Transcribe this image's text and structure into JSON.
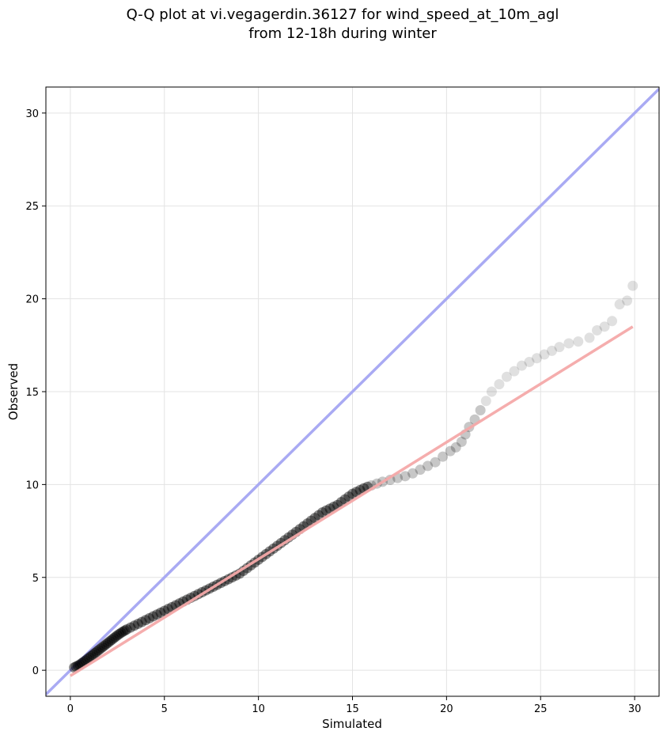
{
  "chart_data": {
    "type": "scatter",
    "title_lines": [
      "Q-Q plot at vi.vegagerdin.36127 for wind_speed_at_10m_agl",
      "from 12-18h during winter"
    ],
    "xlabel": "Simulated",
    "ylabel": "Observed",
    "xlim": [
      -1.3,
      31.3
    ],
    "ylim": [
      -1.4,
      31.4
    ],
    "xticks": [
      0,
      5,
      10,
      15,
      20,
      25,
      30
    ],
    "yticks": [
      0,
      5,
      10,
      15,
      20,
      25,
      30
    ],
    "grid": true,
    "identity_line": {
      "color": "#a9aaf3",
      "from": [
        -1.3,
        -1.3
      ],
      "to": [
        31.3,
        31.3
      ]
    },
    "fit_line": {
      "color": "#f4a9a9",
      "from": [
        0.0,
        -0.3
      ],
      "to": [
        29.9,
        18.5
      ]
    },
    "point_color": "#000000",
    "points": [
      [
        0.2,
        0.15
      ],
      [
        0.3,
        0.2
      ],
      [
        0.4,
        0.25
      ],
      [
        0.5,
        0.3
      ],
      [
        0.6,
        0.38
      ],
      [
        0.7,
        0.45
      ],
      [
        0.8,
        0.52
      ],
      [
        0.9,
        0.6
      ],
      [
        1.0,
        0.68
      ],
      [
        1.1,
        0.76
      ],
      [
        1.2,
        0.84
      ],
      [
        1.3,
        0.92
      ],
      [
        1.4,
        1.0
      ],
      [
        1.5,
        1.08
      ],
      [
        1.6,
        1.16
      ],
      [
        1.7,
        1.24
      ],
      [
        1.8,
        1.32
      ],
      [
        1.9,
        1.4
      ],
      [
        2.0,
        1.48
      ],
      [
        2.1,
        1.56
      ],
      [
        2.2,
        1.64
      ],
      [
        2.3,
        1.72
      ],
      [
        2.4,
        1.8
      ],
      [
        2.5,
        1.88
      ],
      [
        2.6,
        1.95
      ],
      [
        2.7,
        2.02
      ],
      [
        2.8,
        2.08
      ],
      [
        2.9,
        2.14
      ],
      [
        3.0,
        2.2
      ],
      [
        3.2,
        2.3
      ],
      [
        3.4,
        2.4
      ],
      [
        3.6,
        2.5
      ],
      [
        3.8,
        2.6
      ],
      [
        4.0,
        2.7
      ],
      [
        4.2,
        2.8
      ],
      [
        4.4,
        2.9
      ],
      [
        4.6,
        3.0
      ],
      [
        4.8,
        3.1
      ],
      [
        5.0,
        3.2
      ],
      [
        5.2,
        3.3
      ],
      [
        5.4,
        3.4
      ],
      [
        5.6,
        3.5
      ],
      [
        5.8,
        3.6
      ],
      [
        6.0,
        3.7
      ],
      [
        6.2,
        3.8
      ],
      [
        6.4,
        3.9
      ],
      [
        6.6,
        4.0
      ],
      [
        6.8,
        4.1
      ],
      [
        7.0,
        4.2
      ],
      [
        7.2,
        4.3
      ],
      [
        7.4,
        4.4
      ],
      [
        7.6,
        4.5
      ],
      [
        7.8,
        4.6
      ],
      [
        8.0,
        4.7
      ],
      [
        8.2,
        4.8
      ],
      [
        8.4,
        4.9
      ],
      [
        8.6,
        5.0
      ],
      [
        8.8,
        5.1
      ],
      [
        9.0,
        5.2
      ],
      [
        9.2,
        5.35
      ],
      [
        9.4,
        5.5
      ],
      [
        9.6,
        5.65
      ],
      [
        9.8,
        5.8
      ],
      [
        10.0,
        5.95
      ],
      [
        10.2,
        6.1
      ],
      [
        10.4,
        6.25
      ],
      [
        10.6,
        6.4
      ],
      [
        10.8,
        6.55
      ],
      [
        11.0,
        6.7
      ],
      [
        11.2,
        6.85
      ],
      [
        11.4,
        7.0
      ],
      [
        11.6,
        7.15
      ],
      [
        11.8,
        7.3
      ],
      [
        12.0,
        7.45
      ],
      [
        12.2,
        7.6
      ],
      [
        12.4,
        7.75
      ],
      [
        12.6,
        7.9
      ],
      [
        12.8,
        8.05
      ],
      [
        13.0,
        8.2
      ],
      [
        13.2,
        8.35
      ],
      [
        13.4,
        8.5
      ],
      [
        13.6,
        8.6
      ],
      [
        13.8,
        8.7
      ],
      [
        14.0,
        8.8
      ],
      [
        14.2,
        8.9
      ],
      [
        14.4,
        9.05
      ],
      [
        14.6,
        9.2
      ],
      [
        14.8,
        9.35
      ],
      [
        15.0,
        9.5
      ],
      [
        15.2,
        9.6
      ],
      [
        15.4,
        9.7
      ],
      [
        15.6,
        9.8
      ],
      [
        15.8,
        9.88
      ],
      [
        16.0,
        9.95
      ],
      [
        16.3,
        10.05
      ],
      [
        16.6,
        10.15
      ],
      [
        17.0,
        10.25
      ],
      [
        17.4,
        10.35
      ],
      [
        17.8,
        10.45
      ],
      [
        18.2,
        10.6
      ],
      [
        18.6,
        10.8
      ],
      [
        19.0,
        11.0
      ],
      [
        19.4,
        11.2
      ],
      [
        19.8,
        11.5
      ],
      [
        20.2,
        11.8
      ],
      [
        20.5,
        12.0
      ],
      [
        20.8,
        12.3
      ],
      [
        21.0,
        12.7
      ],
      [
        21.2,
        13.1
      ],
      [
        21.5,
        13.5
      ],
      [
        21.8,
        14.0
      ],
      [
        22.1,
        14.5
      ],
      [
        22.4,
        15.0
      ],
      [
        22.8,
        15.4
      ],
      [
        23.2,
        15.8
      ],
      [
        23.6,
        16.1
      ],
      [
        24.0,
        16.4
      ],
      [
        24.4,
        16.6
      ],
      [
        24.8,
        16.8
      ],
      [
        25.2,
        17.0
      ],
      [
        25.6,
        17.2
      ],
      [
        26.0,
        17.4
      ],
      [
        26.5,
        17.6
      ],
      [
        27.0,
        17.7
      ],
      [
        27.6,
        17.9
      ],
      [
        28.0,
        18.3
      ],
      [
        28.4,
        18.5
      ],
      [
        28.8,
        18.8
      ],
      [
        29.2,
        19.7
      ],
      [
        29.6,
        19.9
      ],
      [
        29.9,
        20.7
      ]
    ]
  }
}
